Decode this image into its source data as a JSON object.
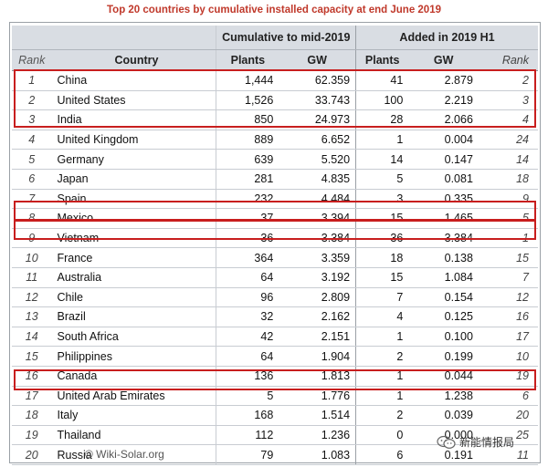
{
  "title": "Top 20 countries by cumulative installed capacity at end June 2019",
  "headers": {
    "group_cumulative": "Cumulative to mid-2019",
    "group_added": "Added in 2019 H1",
    "rank": "Rank",
    "country": "Country",
    "plants": "Plants",
    "gw": "GW",
    "plants2": "Plants",
    "gw2": "GW",
    "rank2": "Rank"
  },
  "rows": [
    {
      "rank": "1",
      "country": "China",
      "plants": "1,444",
      "gw": "62.359",
      "add_plants": "41",
      "add_gw": "2.879",
      "add_rank": "2"
    },
    {
      "rank": "2",
      "country": "United States",
      "plants": "1,526",
      "gw": "33.743",
      "add_plants": "100",
      "add_gw": "2.219",
      "add_rank": "3"
    },
    {
      "rank": "3",
      "country": "India",
      "plants": "850",
      "gw": "24.973",
      "add_plants": "28",
      "add_gw": "2.066",
      "add_rank": "4"
    },
    {
      "rank": "4",
      "country": "United Kingdom",
      "plants": "889",
      "gw": "6.652",
      "add_plants": "1",
      "add_gw": "0.004",
      "add_rank": "24"
    },
    {
      "rank": "5",
      "country": "Germany",
      "plants": "639",
      "gw": "5.520",
      "add_plants": "14",
      "add_gw": "0.147",
      "add_rank": "14"
    },
    {
      "rank": "6",
      "country": "Japan",
      "plants": "281",
      "gw": "4.835",
      "add_plants": "5",
      "add_gw": "0.081",
      "add_rank": "18"
    },
    {
      "rank": "7",
      "country": "Spain",
      "plants": "232",
      "gw": "4.484",
      "add_plants": "3",
      "add_gw": "0.335",
      "add_rank": "9"
    },
    {
      "rank": "8",
      "country": "Mexico",
      "plants": "37",
      "gw": "3.394",
      "add_plants": "15",
      "add_gw": "1.465",
      "add_rank": "5"
    },
    {
      "rank": "9",
      "country": "Vietnam",
      "plants": "36",
      "gw": "3.384",
      "add_plants": "36",
      "add_gw": "3.384",
      "add_rank": "1"
    },
    {
      "rank": "10",
      "country": "France",
      "plants": "364",
      "gw": "3.359",
      "add_plants": "18",
      "add_gw": "0.138",
      "add_rank": "15"
    },
    {
      "rank": "11",
      "country": "Australia",
      "plants": "64",
      "gw": "3.192",
      "add_plants": "15",
      "add_gw": "1.084",
      "add_rank": "7"
    },
    {
      "rank": "12",
      "country": "Chile",
      "plants": "96",
      "gw": "2.809",
      "add_plants": "7",
      "add_gw": "0.154",
      "add_rank": "12"
    },
    {
      "rank": "13",
      "country": "Brazil",
      "plants": "32",
      "gw": "2.162",
      "add_plants": "4",
      "add_gw": "0.125",
      "add_rank": "16"
    },
    {
      "rank": "14",
      "country": "South Africa",
      "plants": "42",
      "gw": "2.151",
      "add_plants": "1",
      "add_gw": "0.100",
      "add_rank": "17"
    },
    {
      "rank": "15",
      "country": "Philippines",
      "plants": "64",
      "gw": "1.904",
      "add_plants": "2",
      "add_gw": "0.199",
      "add_rank": "10"
    },
    {
      "rank": "16",
      "country": "Canada",
      "plants": "136",
      "gw": "1.813",
      "add_plants": "1",
      "add_gw": "0.044",
      "add_rank": "19"
    },
    {
      "rank": "17",
      "country": "United Arab Emirates",
      "plants": "5",
      "gw": "1.776",
      "add_plants": "1",
      "add_gw": "1.238",
      "add_rank": "6"
    },
    {
      "rank": "18",
      "country": "Italy",
      "plants": "168",
      "gw": "1.514",
      "add_plants": "2",
      "add_gw": "0.039",
      "add_rank": "20"
    },
    {
      "rank": "19",
      "country": "Thailand",
      "plants": "112",
      "gw": "1.236",
      "add_plants": "0",
      "add_gw": "0.000",
      "add_rank": "25"
    },
    {
      "rank": "20",
      "country": "Russia",
      "plants": "79",
      "gw": "1.083",
      "add_plants": "6",
      "add_gw": "0.191",
      "add_rank": "11"
    }
  ],
  "footer": "© Wiki-Solar.org",
  "watermark": "新能情报局",
  "colors": {
    "title": "#c0392b",
    "highlight": "#c81e1e",
    "header_bg": "#d9dde3"
  }
}
